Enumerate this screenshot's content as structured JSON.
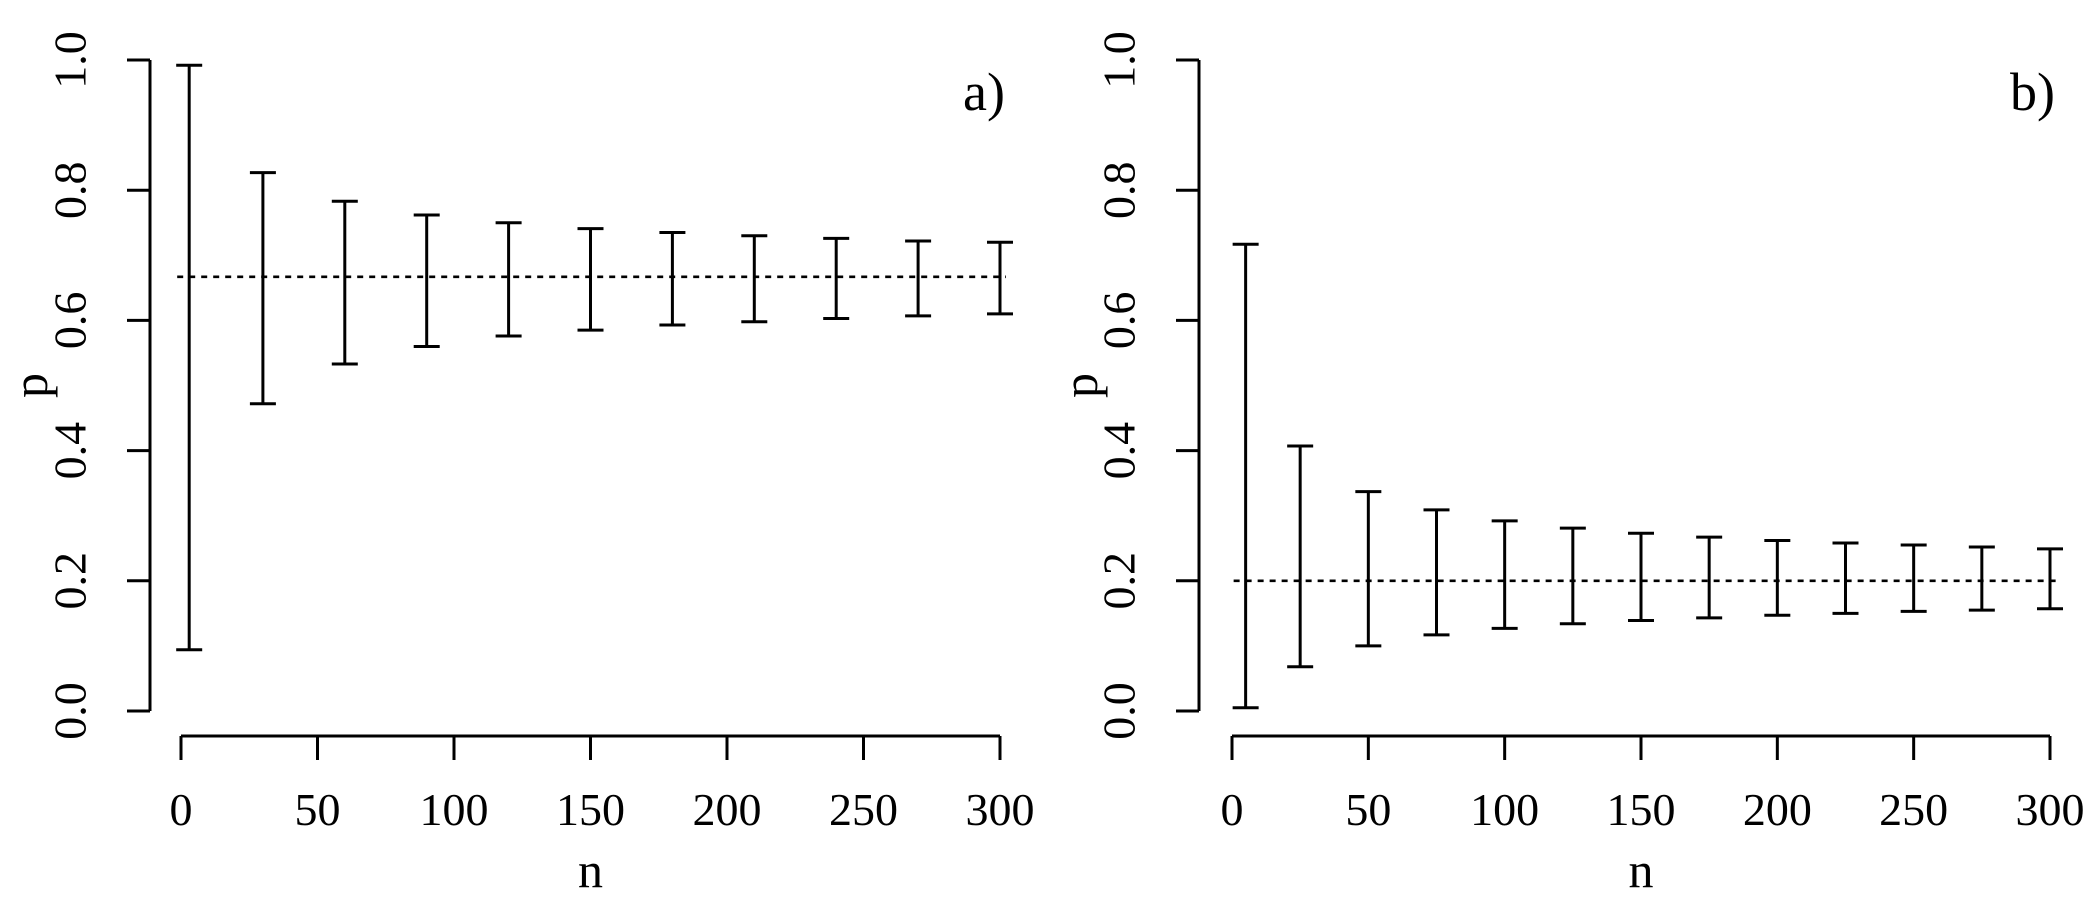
{
  "chart_data": [
    {
      "type": "errorbar",
      "panel_label": "a)",
      "xlabel": "n",
      "ylabel": "p",
      "xlim": [
        0,
        300
      ],
      "ylim": [
        0,
        1
      ],
      "x_ticks": [
        "0",
        "50",
        "100",
        "150",
        "200",
        "250",
        "300"
      ],
      "y_ticks": [
        "0.0",
        "0.2",
        "0.4",
        "0.6",
        "0.8",
        "1.0"
      ],
      "reference_value": 0.667,
      "reference_style": "dotted",
      "intervals": [
        {
          "n": 3,
          "lower": 0.094,
          "upper": 0.992
        },
        {
          "n": 30,
          "lower": 0.472,
          "upper": 0.827
        },
        {
          "n": 60,
          "lower": 0.533,
          "upper": 0.783
        },
        {
          "n": 90,
          "lower": 0.56,
          "upper": 0.762
        },
        {
          "n": 120,
          "lower": 0.576,
          "upper": 0.75
        },
        {
          "n": 150,
          "lower": 0.585,
          "upper": 0.741
        },
        {
          "n": 180,
          "lower": 0.593,
          "upper": 0.735
        },
        {
          "n": 210,
          "lower": 0.598,
          "upper": 0.73
        },
        {
          "n": 240,
          "lower": 0.603,
          "upper": 0.726
        },
        {
          "n": 270,
          "lower": 0.607,
          "upper": 0.722
        },
        {
          "n": 300,
          "lower": 0.61,
          "upper": 0.72
        }
      ]
    },
    {
      "type": "errorbar",
      "panel_label": "b)",
      "xlabel": "n",
      "ylabel": "p",
      "xlim": [
        0,
        300
      ],
      "ylim": [
        0,
        1
      ],
      "x_ticks": [
        "0",
        "50",
        "100",
        "150",
        "200",
        "250",
        "300"
      ],
      "y_ticks": [
        "0.0",
        "0.2",
        "0.4",
        "0.6",
        "0.8",
        "1.0"
      ],
      "reference_value": 0.2,
      "reference_style": "dotted",
      "intervals": [
        {
          "n": 5,
          "lower": 0.005,
          "upper": 0.717
        },
        {
          "n": 25,
          "lower": 0.068,
          "upper": 0.407
        },
        {
          "n": 50,
          "lower": 0.1,
          "upper": 0.337
        },
        {
          "n": 75,
          "lower": 0.117,
          "upper": 0.309
        },
        {
          "n": 100,
          "lower": 0.127,
          "upper": 0.292
        },
        {
          "n": 125,
          "lower": 0.134,
          "upper": 0.281
        },
        {
          "n": 150,
          "lower": 0.139,
          "upper": 0.273
        },
        {
          "n": 175,
          "lower": 0.143,
          "upper": 0.267
        },
        {
          "n": 200,
          "lower": 0.147,
          "upper": 0.262
        },
        {
          "n": 225,
          "lower": 0.15,
          "upper": 0.258
        },
        {
          "n": 250,
          "lower": 0.153,
          "upper": 0.255
        },
        {
          "n": 275,
          "lower": 0.155,
          "upper": 0.252
        },
        {
          "n": 300,
          "lower": 0.157,
          "upper": 0.249
        }
      ]
    }
  ]
}
